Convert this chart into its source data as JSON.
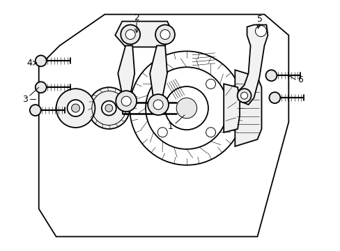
{
  "background_color": "#ffffff",
  "line_color": "#000000",
  "figsize": [
    4.89,
    3.6
  ],
  "dpi": 100,
  "lw_main": 1.3,
  "lw_thin": 0.7,
  "lw_hair": 0.4
}
